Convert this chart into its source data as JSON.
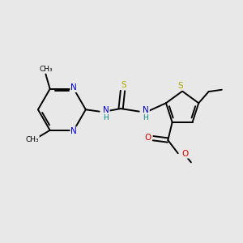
{
  "bg_color": "#e8e8e8",
  "bond_color": "#000000",
  "bond_width": 1.4,
  "atom_colors": {
    "N": "#0000cc",
    "S": "#aaaa00",
    "O": "#dd0000",
    "C": "#000000",
    "H": "#008888"
  },
  "font_size": 7.5,
  "fig_size": [
    3.0,
    3.0
  ],
  "dpi": 100
}
